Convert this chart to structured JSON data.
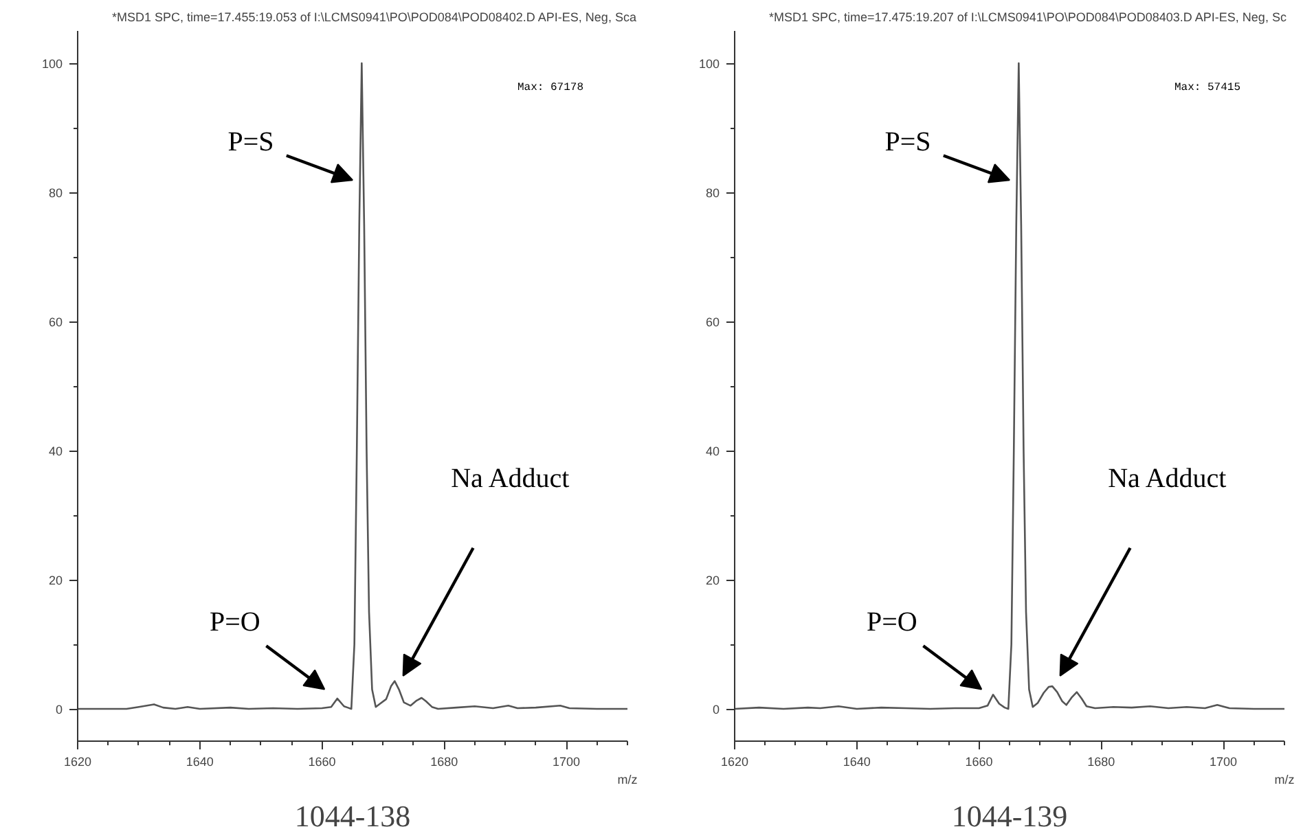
{
  "chart_data": [
    {
      "type": "line",
      "title": "*MSD1 SPC, time=17.455:19.053 of I:\\LCMS0941\\PO\\POD084\\POD08402.D    API-ES, Neg, Sca",
      "subtitle": "1044-138",
      "xlabel": "m/z",
      "xlim": [
        1620,
        1710
      ],
      "ylim": [
        -5,
        105
      ],
      "xticks": [
        1620,
        1640,
        1660,
        1680,
        1700
      ],
      "yticks": [
        0,
        20,
        40,
        60,
        80,
        100
      ],
      "grid": false,
      "series": [
        {
          "color": "#555555",
          "x": [
            1620,
            1625,
            1628,
            1630,
            1632.5,
            1634,
            1636,
            1638,
            1640,
            1645,
            1648,
            1652,
            1656,
            1660,
            1661.5,
            1662.5,
            1663.6,
            1664.2,
            1664.8,
            1665.3,
            1665.7,
            1666.1,
            1666.5,
            1666.9,
            1667.3,
            1667.7,
            1668.2,
            1668.8,
            1669.5,
            1670.5,
            1671.3,
            1671.9,
            1672.6,
            1673.4,
            1674.5,
            1675.5,
            1676.3,
            1677,
            1678,
            1679,
            1682,
            1685,
            1688,
            1690.5,
            1692,
            1695,
            1699,
            1700.5,
            1705,
            1710
          ],
          "values": [
            0,
            0,
            0,
            0.3,
            0.7,
            0.2,
            0,
            0.3,
            0,
            0.2,
            0,
            0.1,
            0,
            0.1,
            0.3,
            1.6,
            0.4,
            0.2,
            0,
            10,
            40,
            75,
            100,
            75,
            40,
            15,
            3,
            0.3,
            0.8,
            1.5,
            3.5,
            4.3,
            3,
            1,
            0.5,
            1.3,
            1.7,
            1.2,
            0.3,
            0,
            0.2,
            0.4,
            0.1,
            0.5,
            0.1,
            0.2,
            0.5,
            0.1,
            0,
            0
          ]
        }
      ],
      "annotations": [
        "Max: 67178",
        "P=S",
        "P=O",
        "Na Adduct"
      ]
    },
    {
      "type": "line",
      "title": "*MSD1 SPC, time=17.475:19.207 of I:\\LCMS0941\\PO\\POD084\\POD08403.D    API-ES, Neg, Sc",
      "subtitle": "1044-139",
      "xlabel": "m/z",
      "xlim": [
        1620,
        1710
      ],
      "ylim": [
        -5,
        105
      ],
      "xticks": [
        1620,
        1640,
        1660,
        1680,
        1700
      ],
      "yticks": [
        0,
        20,
        40,
        60,
        80,
        100
      ],
      "grid": false,
      "series": [
        {
          "color": "#555555",
          "x": [
            1620,
            1624,
            1628,
            1632,
            1634,
            1637,
            1640,
            1644,
            1648,
            1652,
            1656,
            1660,
            1661.4,
            1662.3,
            1663.3,
            1664.2,
            1664.8,
            1665.3,
            1665.7,
            1666.1,
            1666.5,
            1666.9,
            1667.3,
            1667.7,
            1668.2,
            1668.8,
            1669.6,
            1670.6,
            1671.4,
            1672,
            1672.8,
            1673.6,
            1674.3,
            1675.2,
            1676,
            1676.8,
            1677.6,
            1679,
            1682,
            1685,
            1688,
            1691,
            1694,
            1697,
            1699,
            1701,
            1705,
            1710
          ],
          "values": [
            0,
            0.2,
            0,
            0.2,
            0.1,
            0.4,
            0,
            0.2,
            0.1,
            0,
            0.1,
            0.1,
            0.5,
            2.2,
            0.8,
            0.2,
            0,
            10,
            40,
            75,
            100,
            75,
            40,
            15,
            3,
            0.3,
            0.9,
            2.5,
            3.4,
            3.5,
            2.6,
            1.2,
            0.6,
            1.8,
            2.6,
            1.6,
            0.4,
            0.1,
            0.3,
            0.2,
            0.4,
            0.1,
            0.3,
            0.1,
            0.6,
            0.1,
            0,
            0
          ]
        }
      ],
      "annotations": [
        "Max: 57415",
        "P=S",
        "P=O",
        "Na Adduct"
      ]
    }
  ]
}
